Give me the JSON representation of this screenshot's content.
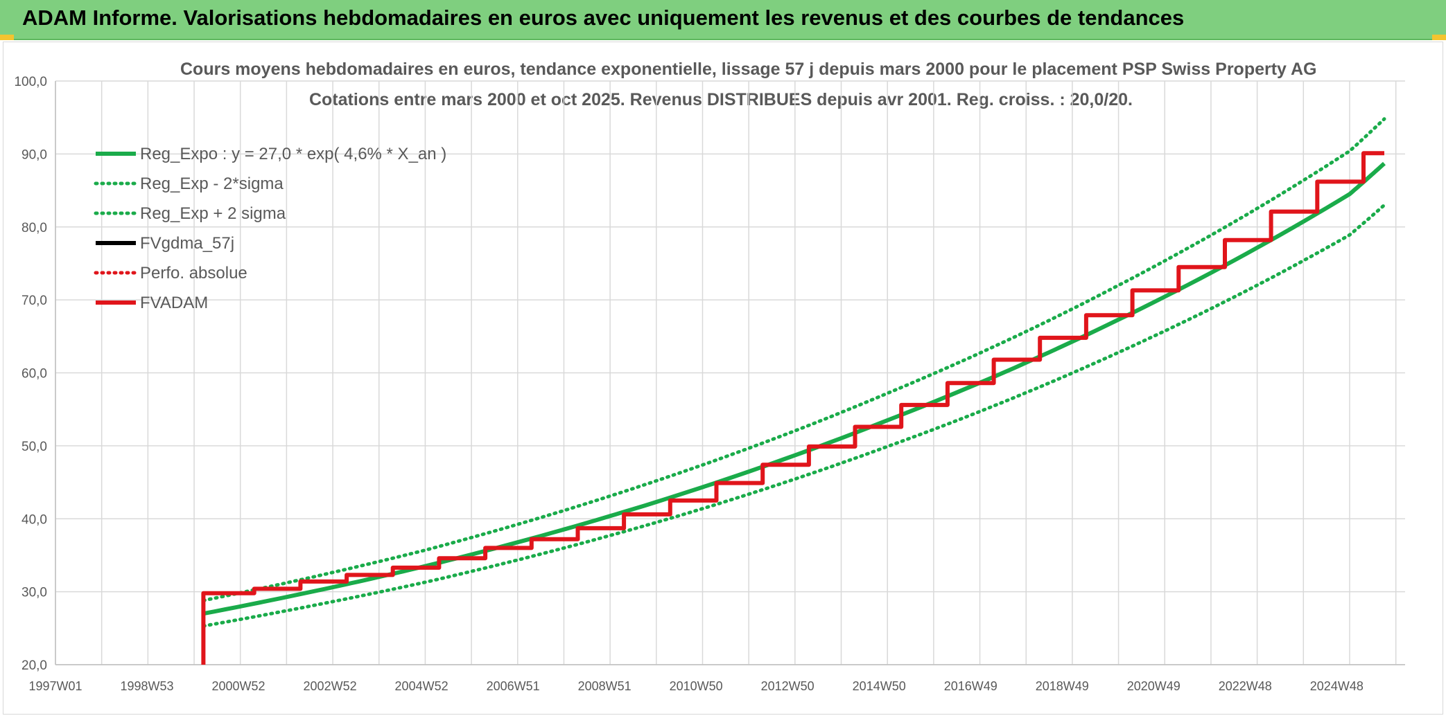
{
  "report": {
    "title": "ADAM Informe. Valorisations hebdomadaires en euros avec uniquement les revenus et des courbes de tendances"
  },
  "chart_data": {
    "type": "line",
    "title": "Cours moyens hebdomadaires en euros, tendance exponentielle, lissage 57 j depuis mars 2000 pour le placement PSP Swiss Property AG",
    "subtitle": "Cotations entre mars 2000 et oct 2025. Revenus DISTRIBUES depuis avr 2001. Reg. croiss. : 20,0/20.",
    "x_ticks": [
      "1997W01",
      "1998W53",
      "2000W52",
      "2002W52",
      "2004W52",
      "2006W51",
      "2008W51",
      "2010W50",
      "2012W50",
      "2014W50",
      "2016W49",
      "2018W49",
      "2020W49",
      "2022W48",
      "2024W48"
    ],
    "x_range_years": [
      1997.0,
      2026.2
    ],
    "ylim": [
      20,
      100
    ],
    "y_ticks": [
      "20,0",
      "30,0",
      "40,0",
      "50,0",
      "60,0",
      "70,0",
      "80,0",
      "90,0",
      "100,0"
    ],
    "grid": true,
    "legend_position": "top-left",
    "colors": {
      "green": "#1aab4a",
      "black": "#000000",
      "red": "#e0151b",
      "grid": "#d9d9d9",
      "axis_text": "#595959"
    },
    "series": [
      {
        "name": "Reg_Expo : y = 27,0 * exp( 4,6% *  X_an )",
        "style": "solid",
        "color": "#1aab4a",
        "x": [
          2000.2,
          2005.0,
          2010.0,
          2015.0,
          2020.0,
          2025.0,
          2025.75
        ],
        "y": [
          27.0,
          33.5,
          42.3,
          53.5,
          67.3,
          84.5,
          88.7
        ]
      },
      {
        "name": "Reg_Exp - 2*sigma",
        "style": "dotted",
        "color": "#1aab4a",
        "x": [
          2000.2,
          2005.0,
          2010.0,
          2015.0,
          2020.0,
          2025.0,
          2025.75
        ],
        "y": [
          25.3,
          31.3,
          39.5,
          49.9,
          62.8,
          78.9,
          83.0
        ]
      },
      {
        "name": "Reg_Exp + 2 sigma",
        "style": "dotted",
        "color": "#1aab4a",
        "x": [
          2000.2,
          2005.0,
          2010.0,
          2015.0,
          2020.0,
          2025.0,
          2025.75
        ],
        "y": [
          28.8,
          35.7,
          45.2,
          57.2,
          72.0,
          90.4,
          94.8
        ]
      },
      {
        "name": "FVgdma_57j",
        "style": "solid",
        "color": "#000000",
        "x": [
          2000.2,
          2001.3,
          2002.3,
          2003.3,
          2004.3,
          2005.3,
          2006.3,
          2007.3,
          2008.3,
          2009.3,
          2010.3,
          2011.3,
          2012.3,
          2013.3,
          2014.3,
          2015.3,
          2016.3,
          2017.3,
          2018.3,
          2019.3,
          2020.3,
          2021.3,
          2022.3,
          2023.3,
          2024.3,
          2025.3,
          2025.75
        ],
        "y": [
          29.8,
          30.4,
          31.4,
          32.3,
          33.3,
          34.6,
          36.0,
          37.2,
          38.7,
          40.6,
          42.5,
          44.9,
          47.4,
          49.9,
          52.6,
          55.6,
          58.6,
          61.8,
          64.8,
          67.9,
          71.3,
          74.5,
          78.2,
          82.1,
          86.2,
          90.1,
          90.1
        ]
      },
      {
        "name": "Perfo. absolue",
        "style": "dotted",
        "color": "#e0151b",
        "x": [
          2000.2,
          2001.3,
          2002.3,
          2003.3,
          2004.3,
          2005.3,
          2006.3,
          2007.3,
          2008.3,
          2009.3,
          2010.3,
          2011.3,
          2012.3,
          2013.3,
          2014.3,
          2015.3,
          2016.3,
          2017.3,
          2018.3,
          2019.3,
          2020.3,
          2021.3,
          2022.3,
          2023.3,
          2024.3,
          2025.3,
          2025.75
        ],
        "y": [
          29.8,
          30.4,
          31.4,
          32.3,
          33.3,
          34.6,
          36.0,
          37.2,
          38.7,
          40.6,
          42.5,
          44.9,
          47.4,
          49.9,
          52.6,
          55.6,
          58.6,
          61.8,
          64.8,
          67.9,
          71.3,
          74.5,
          78.2,
          82.1,
          86.2,
          90.1,
          90.1
        ]
      },
      {
        "name": "FVADAM",
        "style": "solid",
        "color": "#e0151b",
        "x": [
          2000.2,
          2000.2,
          2001.3,
          2002.3,
          2003.3,
          2004.3,
          2005.3,
          2006.3,
          2007.3,
          2008.3,
          2009.3,
          2010.3,
          2011.3,
          2012.3,
          2013.3,
          2014.3,
          2015.3,
          2016.3,
          2017.3,
          2018.3,
          2019.3,
          2020.3,
          2021.3,
          2022.3,
          2023.3,
          2024.3,
          2025.3,
          2025.75
        ],
        "y": [
          20.0,
          29.8,
          30.4,
          31.4,
          32.3,
          33.3,
          34.6,
          36.0,
          37.2,
          38.7,
          40.6,
          42.5,
          44.9,
          47.4,
          49.9,
          52.6,
          55.6,
          58.6,
          61.8,
          64.8,
          67.9,
          71.3,
          74.5,
          78.2,
          82.1,
          86.2,
          90.1,
          90.1
        ]
      }
    ]
  }
}
